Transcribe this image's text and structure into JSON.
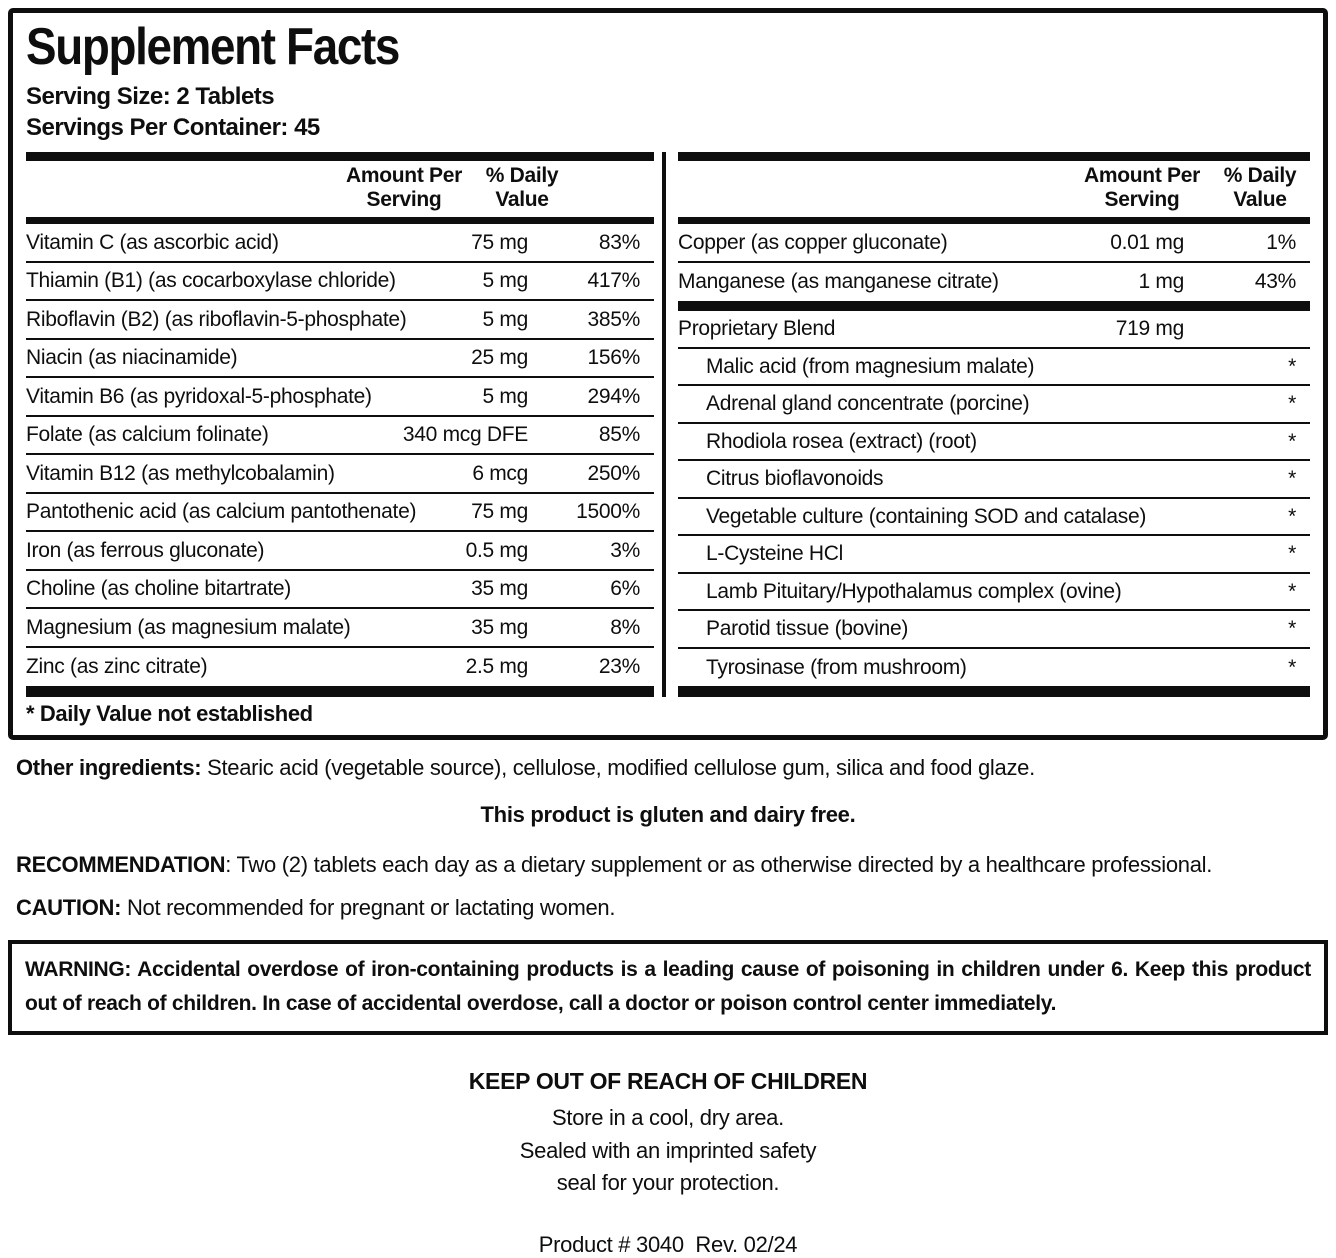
{
  "title": "Supplement Facts",
  "serving": {
    "size": "Serving Size: 2 Tablets",
    "per_container": "Servings Per Container: 45"
  },
  "table": {
    "headers": {
      "amount": "Amount Per Serving",
      "dv": "% Daily Value"
    },
    "left_rows": [
      {
        "label": "Vitamin C (as ascorbic acid)",
        "amount": "75 mg",
        "dv": "83%"
      },
      {
        "label": "Thiamin (B1) (as cocarboxylase chloride)",
        "amount": "5 mg",
        "dv": "417%"
      },
      {
        "label": "Riboflavin (B2) (as riboflavin-5-phosphate)",
        "amount": "5 mg",
        "dv": "385%"
      },
      {
        "label": "Niacin (as niacinamide)",
        "amount": "25 mg",
        "dv": "156%"
      },
      {
        "label": "Vitamin B6 (as pyridoxal-5-phosphate)",
        "amount": "5 mg",
        "dv": "294%"
      },
      {
        "label": "Folate (as calcium folinate)",
        "amount": "340 mcg DFE",
        "dv": "85%"
      },
      {
        "label": "Vitamin B12 (as methylcobalamin)",
        "amount": "6 mcg",
        "dv": "250%"
      },
      {
        "label": "Pantothenic acid (as calcium pantothenate)",
        "amount": "75 mg",
        "dv": "1500%"
      },
      {
        "label": "Iron (as ferrous gluconate)",
        "amount": "0.5 mg",
        "dv": "3%"
      },
      {
        "label": "Choline (as choline bitartrate)",
        "amount": "35 mg",
        "dv": "6%"
      },
      {
        "label": "Magnesium (as magnesium malate)",
        "amount": "35 mg",
        "dv": "8%"
      },
      {
        "label": "Zinc (as zinc citrate)",
        "amount": "2.5 mg",
        "dv": "23%"
      }
    ],
    "right_rows": [
      {
        "label": "Copper (as copper gluconate)",
        "amount": "0.01 mg",
        "dv": "1%"
      },
      {
        "label": "Manganese (as manganese citrate)",
        "amount": "1 mg",
        "dv": "43%"
      }
    ],
    "blend": {
      "label": "Proprietary Blend",
      "amount": "719 mg",
      "dv": "",
      "items": [
        {
          "label": "Malic acid (from magnesium malate)",
          "dv": "*"
        },
        {
          "label": "Adrenal gland concentrate (porcine)",
          "dv": "*"
        },
        {
          "label": "Rhodiola rosea (extract) (root)",
          "dv": "*"
        },
        {
          "label": "Citrus bioflavonoids",
          "dv": "*"
        },
        {
          "label": "Vegetable culture (containing SOD and catalase)",
          "dv": "*"
        },
        {
          "label": "L-Cysteine HCl",
          "dv": "*"
        },
        {
          "label": "Lamb Pituitary/Hypothalamus complex (ovine)",
          "dv": "*"
        },
        {
          "label": "Parotid tissue (bovine)",
          "dv": "*"
        },
        {
          "label": "Tyrosinase (from mushroom)",
          "dv": "*"
        }
      ]
    },
    "footnote": "* Daily Value not established"
  },
  "other_ingredients": {
    "label": "Other ingredients:",
    "text": " Stearic acid (vegetable source), cellulose, modified cellulose gum, silica and food glaze."
  },
  "gluten_note": "This product is gluten and dairy free.",
  "recommendation": {
    "label": "RECOMMENDATION",
    "text": ": Two (2) tablets each day as a dietary supplement or as otherwise directed by a healthcare professional."
  },
  "caution": {
    "label": "CAUTION:",
    "text": " Not recommended for pregnant or lactating women."
  },
  "warning": "WARNING: Accidental overdose of iron-containing products is a leading cause of poisoning in children under 6. Keep this product out of reach of children. In case of accidental overdose, call a doctor or poison control center immediately.",
  "storage": {
    "heading": "KEEP OUT OF REACH OF CHILDREN",
    "lines": [
      "Store in a cool, dry area.",
      "Sealed with an imprinted safety",
      "seal for your protection."
    ]
  },
  "product_info": "Product # 3040  Rev. 02/24"
}
